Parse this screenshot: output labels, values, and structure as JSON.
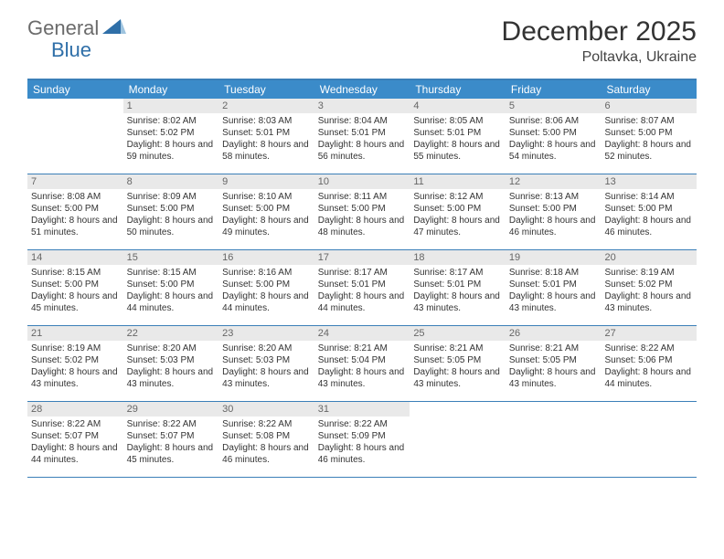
{
  "logo": {
    "general": "General",
    "blue": "Blue"
  },
  "title": "December 2025",
  "location": "Poltavka, Ukraine",
  "colors": {
    "header_bar": "#3b8bc9",
    "rule": "#3b7fb8",
    "daynum_bg": "#e9e9e9",
    "logo_gray": "#6b6b6b",
    "logo_blue": "#2f6fa8"
  },
  "weekdays": [
    "Sunday",
    "Monday",
    "Tuesday",
    "Wednesday",
    "Thursday",
    "Friday",
    "Saturday"
  ],
  "weeks": [
    [
      {
        "n": "",
        "sr": "",
        "ss": "",
        "dl": ""
      },
      {
        "n": "1",
        "sr": "Sunrise: 8:02 AM",
        "ss": "Sunset: 5:02 PM",
        "dl": "Daylight: 8 hours and 59 minutes."
      },
      {
        "n": "2",
        "sr": "Sunrise: 8:03 AM",
        "ss": "Sunset: 5:01 PM",
        "dl": "Daylight: 8 hours and 58 minutes."
      },
      {
        "n": "3",
        "sr": "Sunrise: 8:04 AM",
        "ss": "Sunset: 5:01 PM",
        "dl": "Daylight: 8 hours and 56 minutes."
      },
      {
        "n": "4",
        "sr": "Sunrise: 8:05 AM",
        "ss": "Sunset: 5:01 PM",
        "dl": "Daylight: 8 hours and 55 minutes."
      },
      {
        "n": "5",
        "sr": "Sunrise: 8:06 AM",
        "ss": "Sunset: 5:00 PM",
        "dl": "Daylight: 8 hours and 54 minutes."
      },
      {
        "n": "6",
        "sr": "Sunrise: 8:07 AM",
        "ss": "Sunset: 5:00 PM",
        "dl": "Daylight: 8 hours and 52 minutes."
      }
    ],
    [
      {
        "n": "7",
        "sr": "Sunrise: 8:08 AM",
        "ss": "Sunset: 5:00 PM",
        "dl": "Daylight: 8 hours and 51 minutes."
      },
      {
        "n": "8",
        "sr": "Sunrise: 8:09 AM",
        "ss": "Sunset: 5:00 PM",
        "dl": "Daylight: 8 hours and 50 minutes."
      },
      {
        "n": "9",
        "sr": "Sunrise: 8:10 AM",
        "ss": "Sunset: 5:00 PM",
        "dl": "Daylight: 8 hours and 49 minutes."
      },
      {
        "n": "10",
        "sr": "Sunrise: 8:11 AM",
        "ss": "Sunset: 5:00 PM",
        "dl": "Daylight: 8 hours and 48 minutes."
      },
      {
        "n": "11",
        "sr": "Sunrise: 8:12 AM",
        "ss": "Sunset: 5:00 PM",
        "dl": "Daylight: 8 hours and 47 minutes."
      },
      {
        "n": "12",
        "sr": "Sunrise: 8:13 AM",
        "ss": "Sunset: 5:00 PM",
        "dl": "Daylight: 8 hours and 46 minutes."
      },
      {
        "n": "13",
        "sr": "Sunrise: 8:14 AM",
        "ss": "Sunset: 5:00 PM",
        "dl": "Daylight: 8 hours and 46 minutes."
      }
    ],
    [
      {
        "n": "14",
        "sr": "Sunrise: 8:15 AM",
        "ss": "Sunset: 5:00 PM",
        "dl": "Daylight: 8 hours and 45 minutes."
      },
      {
        "n": "15",
        "sr": "Sunrise: 8:15 AM",
        "ss": "Sunset: 5:00 PM",
        "dl": "Daylight: 8 hours and 44 minutes."
      },
      {
        "n": "16",
        "sr": "Sunrise: 8:16 AM",
        "ss": "Sunset: 5:00 PM",
        "dl": "Daylight: 8 hours and 44 minutes."
      },
      {
        "n": "17",
        "sr": "Sunrise: 8:17 AM",
        "ss": "Sunset: 5:01 PM",
        "dl": "Daylight: 8 hours and 44 minutes."
      },
      {
        "n": "18",
        "sr": "Sunrise: 8:17 AM",
        "ss": "Sunset: 5:01 PM",
        "dl": "Daylight: 8 hours and 43 minutes."
      },
      {
        "n": "19",
        "sr": "Sunrise: 8:18 AM",
        "ss": "Sunset: 5:01 PM",
        "dl": "Daylight: 8 hours and 43 minutes."
      },
      {
        "n": "20",
        "sr": "Sunrise: 8:19 AM",
        "ss": "Sunset: 5:02 PM",
        "dl": "Daylight: 8 hours and 43 minutes."
      }
    ],
    [
      {
        "n": "21",
        "sr": "Sunrise: 8:19 AM",
        "ss": "Sunset: 5:02 PM",
        "dl": "Daylight: 8 hours and 43 minutes."
      },
      {
        "n": "22",
        "sr": "Sunrise: 8:20 AM",
        "ss": "Sunset: 5:03 PM",
        "dl": "Daylight: 8 hours and 43 minutes."
      },
      {
        "n": "23",
        "sr": "Sunrise: 8:20 AM",
        "ss": "Sunset: 5:03 PM",
        "dl": "Daylight: 8 hours and 43 minutes."
      },
      {
        "n": "24",
        "sr": "Sunrise: 8:21 AM",
        "ss": "Sunset: 5:04 PM",
        "dl": "Daylight: 8 hours and 43 minutes."
      },
      {
        "n": "25",
        "sr": "Sunrise: 8:21 AM",
        "ss": "Sunset: 5:05 PM",
        "dl": "Daylight: 8 hours and 43 minutes."
      },
      {
        "n": "26",
        "sr": "Sunrise: 8:21 AM",
        "ss": "Sunset: 5:05 PM",
        "dl": "Daylight: 8 hours and 43 minutes."
      },
      {
        "n": "27",
        "sr": "Sunrise: 8:22 AM",
        "ss": "Sunset: 5:06 PM",
        "dl": "Daylight: 8 hours and 44 minutes."
      }
    ],
    [
      {
        "n": "28",
        "sr": "Sunrise: 8:22 AM",
        "ss": "Sunset: 5:07 PM",
        "dl": "Daylight: 8 hours and 44 minutes."
      },
      {
        "n": "29",
        "sr": "Sunrise: 8:22 AM",
        "ss": "Sunset: 5:07 PM",
        "dl": "Daylight: 8 hours and 45 minutes."
      },
      {
        "n": "30",
        "sr": "Sunrise: 8:22 AM",
        "ss": "Sunset: 5:08 PM",
        "dl": "Daylight: 8 hours and 46 minutes."
      },
      {
        "n": "31",
        "sr": "Sunrise: 8:22 AM",
        "ss": "Sunset: 5:09 PM",
        "dl": "Daylight: 8 hours and 46 minutes."
      },
      {
        "n": "",
        "sr": "",
        "ss": "",
        "dl": ""
      },
      {
        "n": "",
        "sr": "",
        "ss": "",
        "dl": ""
      },
      {
        "n": "",
        "sr": "",
        "ss": "",
        "dl": ""
      }
    ]
  ]
}
